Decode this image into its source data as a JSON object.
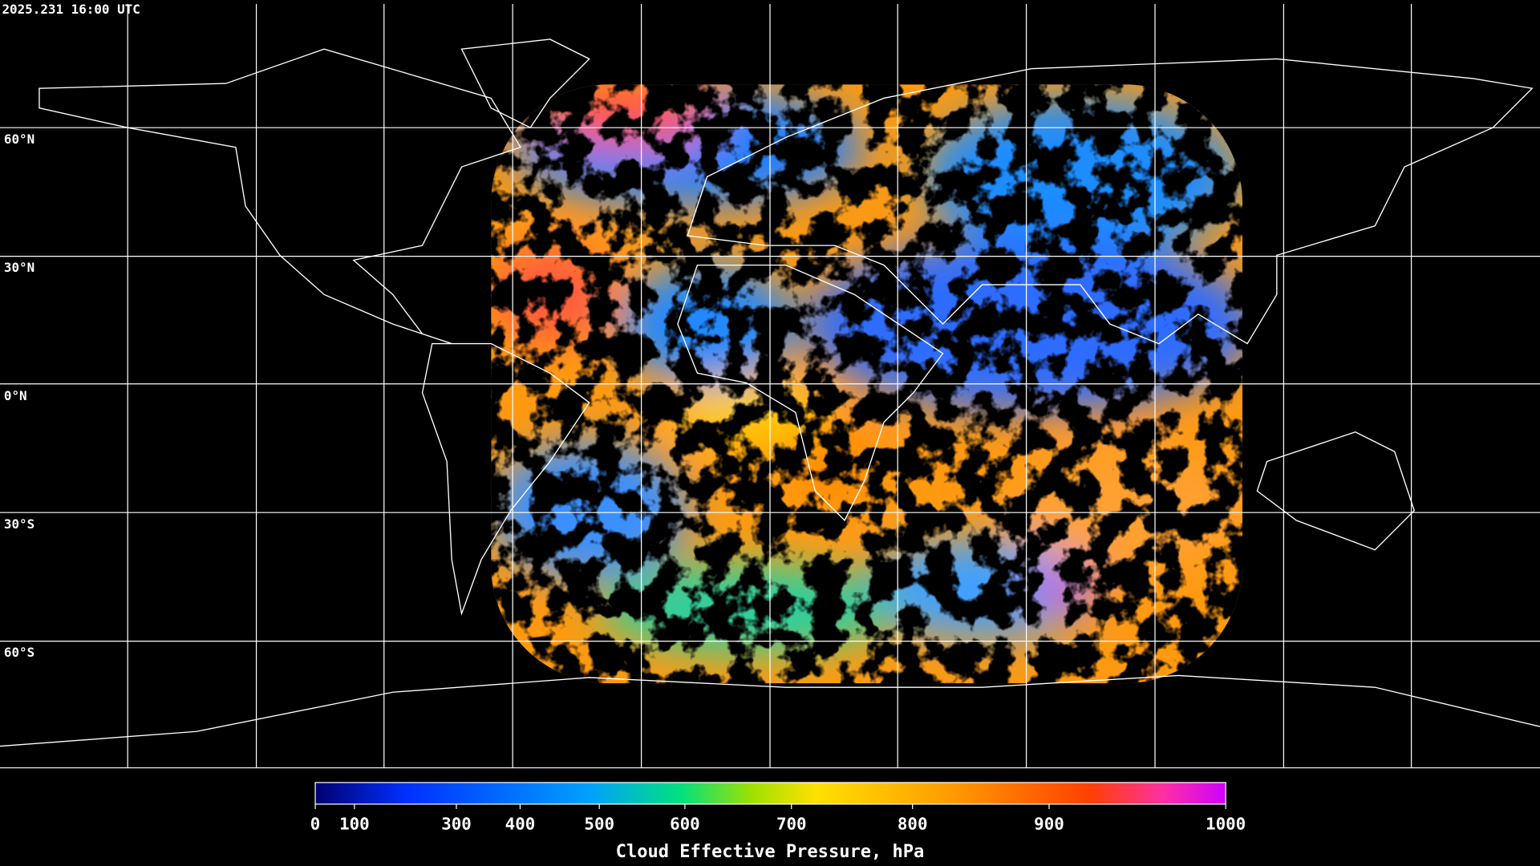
{
  "map": {
    "timestamp": "2025.231 16:00 UTC",
    "lat_labels": [
      "60°N",
      "30°N",
      "0°N",
      "30°S",
      "60°S"
    ]
  },
  "colorbar": {
    "label": "Cloud Effective Pressure, hPa",
    "range": [
      0,
      1000
    ],
    "ticks": [
      0,
      100,
      300,
      400,
      500,
      600,
      700,
      800,
      900,
      1000
    ]
  }
}
